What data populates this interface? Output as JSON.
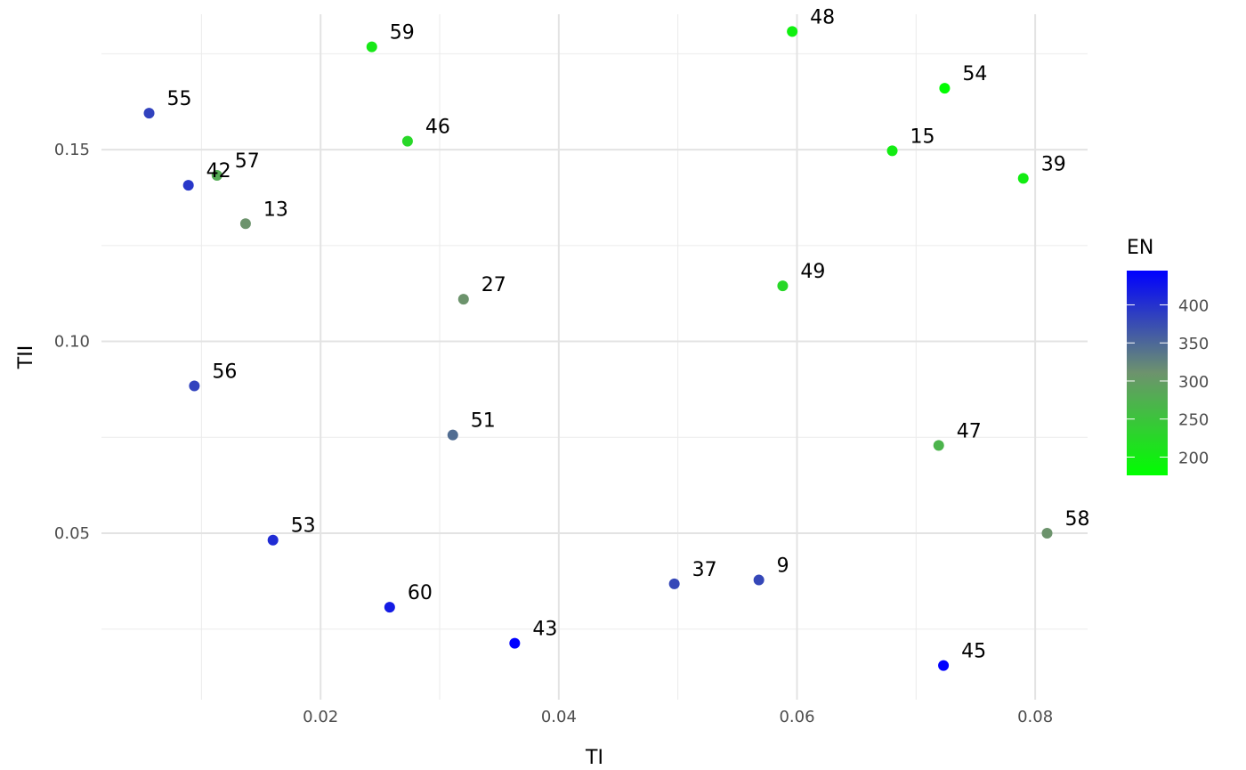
{
  "chart_data": {
    "type": "scatter",
    "xlabel": "TI",
    "ylabel": "TII",
    "xlim": [
      0.0016,
      0.0844
    ],
    "ylim": [
      0.0066,
      0.1853
    ],
    "x_ticks": [
      0.02,
      0.04,
      0.06,
      0.08
    ],
    "x_tick_labels": [
      "0.02",
      "0.04",
      "0.06",
      "0.08"
    ],
    "y_ticks": [
      0.05,
      0.1,
      0.15
    ],
    "y_tick_labels": [
      "0.05",
      "0.10",
      "0.15"
    ],
    "grid": true,
    "legend": {
      "title": "EN",
      "placement": "right",
      "type": "colorbar",
      "range": [
        176,
        445
      ],
      "breaks": [
        200,
        250,
        300,
        350,
        400
      ],
      "break_labels": [
        "200",
        "250",
        "300",
        "350",
        "400"
      ],
      "low_color": "#00ff00",
      "high_color": "#0000ff"
    },
    "points": [
      {
        "label": "55",
        "x": 0.0056,
        "y": 0.1595,
        "en": 385
      },
      {
        "label": "59",
        "x": 0.0243,
        "y": 0.1768,
        "en": 205
      },
      {
        "label": "48",
        "x": 0.0596,
        "y": 0.1808,
        "en": 195
      },
      {
        "label": "54",
        "x": 0.0724,
        "y": 0.166,
        "en": 178
      },
      {
        "label": "46",
        "x": 0.0273,
        "y": 0.1522,
        "en": 225
      },
      {
        "label": "15",
        "x": 0.068,
        "y": 0.1497,
        "en": 200
      },
      {
        "label": "39",
        "x": 0.079,
        "y": 0.1425,
        "en": 200
      },
      {
        "label": "42",
        "x": 0.0089,
        "y": 0.1407,
        "en": 395
      },
      {
        "label": "57",
        "x": 0.0113,
        "y": 0.1433,
        "en": 280
      },
      {
        "label": "13",
        "x": 0.0137,
        "y": 0.1307,
        "en": 310
      },
      {
        "label": "27",
        "x": 0.032,
        "y": 0.111,
        "en": 310
      },
      {
        "label": "49",
        "x": 0.0588,
        "y": 0.1145,
        "en": 225
      },
      {
        "label": "56",
        "x": 0.0094,
        "y": 0.0884,
        "en": 385
      },
      {
        "label": "51",
        "x": 0.0311,
        "y": 0.0756,
        "en": 345
      },
      {
        "label": "47",
        "x": 0.0719,
        "y": 0.0729,
        "en": 270
      },
      {
        "label": "58",
        "x": 0.081,
        "y": 0.05,
        "en": 310
      },
      {
        "label": "53",
        "x": 0.016,
        "y": 0.0482,
        "en": 405
      },
      {
        "label": "37",
        "x": 0.0497,
        "y": 0.0368,
        "en": 380
      },
      {
        "label": "9",
        "x": 0.0568,
        "y": 0.0378,
        "en": 380
      },
      {
        "label": "60",
        "x": 0.0258,
        "y": 0.0307,
        "en": 420
      },
      {
        "label": "43",
        "x": 0.0363,
        "y": 0.0213,
        "en": 445
      },
      {
        "label": "45",
        "x": 0.0723,
        "y": 0.0155,
        "en": 445
      }
    ]
  }
}
